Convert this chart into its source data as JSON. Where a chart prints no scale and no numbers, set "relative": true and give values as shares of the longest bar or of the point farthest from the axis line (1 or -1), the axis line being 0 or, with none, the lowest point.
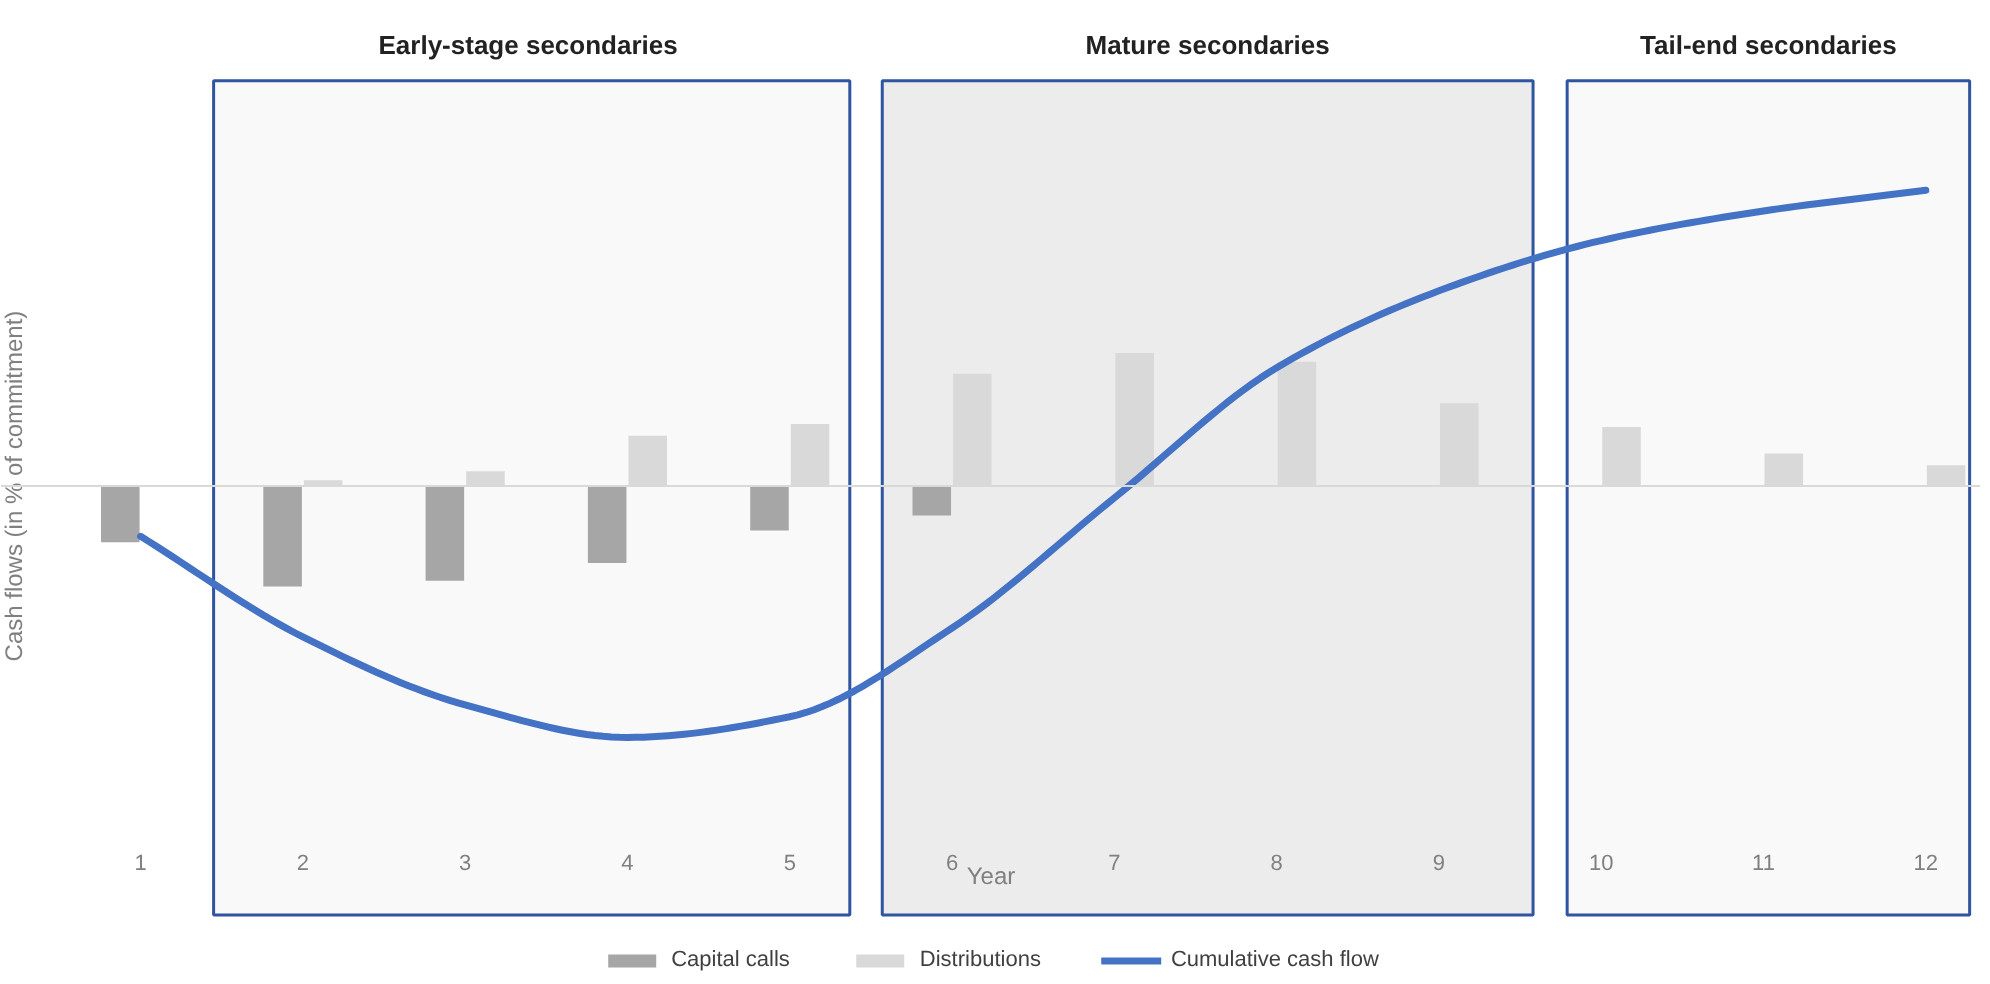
{
  "chart_data": {
    "type": "bar",
    "relative": true,
    "x": [
      1,
      2,
      3,
      4,
      5,
      6,
      7,
      8,
      9,
      10,
      11,
      12
    ],
    "xlim": [
      0.14,
      12.34
    ],
    "xticks": [
      1,
      2,
      3,
      4,
      5,
      6,
      7,
      8,
      9,
      10,
      11,
      12
    ],
    "xlabel": "Year",
    "ylabel": "Cash flows (in % of commitment)",
    "series": [
      {
        "name": "Capital calls",
        "color": "#a6a6a6",
        "values": [
          -0.19,
          -0.34,
          -0.32,
          -0.26,
          -0.15,
          -0.1,
          null,
          null,
          null,
          null,
          null,
          null
        ]
      },
      {
        "name": "Distributions",
        "color": "#d9d9d9",
        "values": [
          null,
          0.02,
          0.05,
          0.17,
          0.21,
          0.38,
          0.45,
          0.42,
          0.28,
          0.2,
          0.11,
          0.07
        ]
      },
      {
        "name": "Cumulative cash flow",
        "type": "line",
        "color": "#4472c4",
        "values": [
          -0.17,
          -0.51,
          -0.74,
          -0.85,
          -0.78,
          -0.48,
          -0.04,
          0.4,
          0.66,
          0.83,
          0.93,
          1.0
        ]
      }
    ],
    "bands": [
      {
        "axis": "x",
        "from": 1.45,
        "to": 5.37,
        "label": "Early-stage  secondaries",
        "color": "#f9f9f9"
      },
      {
        "axis": "x",
        "from": 5.57,
        "to": 9.58,
        "label": "Mature secondaries",
        "color": "#ececec"
      },
      {
        "axis": "x",
        "from": 9.79,
        "to": 12.27,
        "label": "Tail-end secondaries",
        "color": "#f9f9f9"
      }
    ],
    "grid": false,
    "legend": "bottom"
  }
}
